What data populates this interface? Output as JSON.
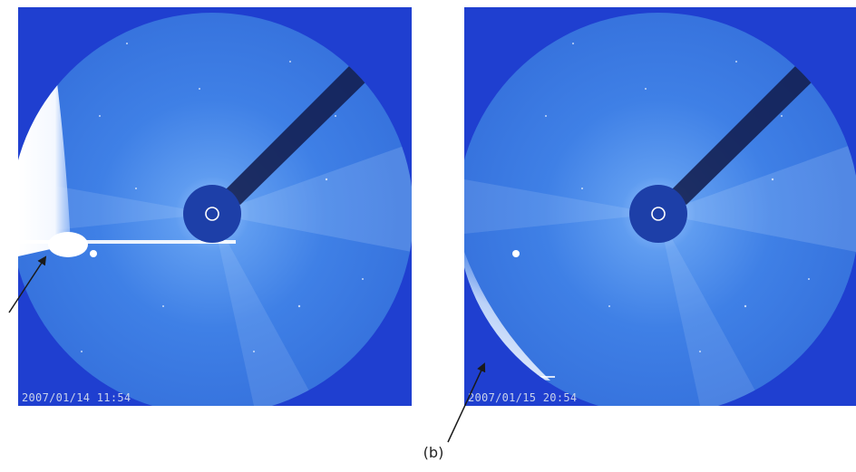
{
  "panels": [
    {
      "timestamp": "2007/01/14 11:54"
    },
    {
      "timestamp": "2007/01/15 20:54"
    }
  ],
  "caption": "(b)",
  "colors": {
    "background": "#1f3fd0",
    "field": "#3f80e6",
    "occulter": "#1d3fa8",
    "comet": "#ffffff",
    "arrow": "#1a1a1a"
  }
}
